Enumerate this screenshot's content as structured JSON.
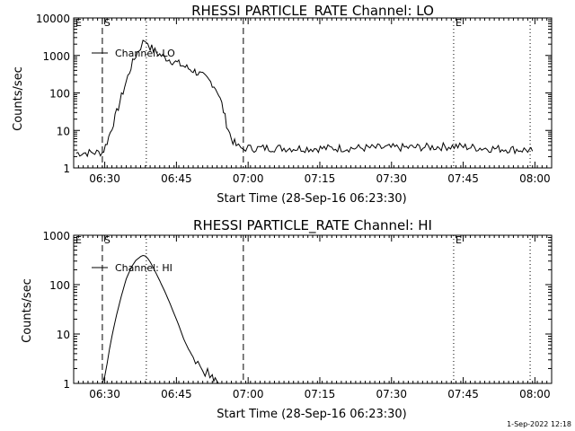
{
  "footer_stamp": "1-Sep-2022 12:18",
  "chart_data": [
    {
      "type": "line",
      "title": "RHESSI PARTICLE_RATE Channel: LO",
      "xlabel": "Start Time (28-Sep-16 06:23:30)",
      "ylabel": "Counts/sec",
      "yscale": "log",
      "ylim": [
        1,
        10000
      ],
      "xlim_minutes_from_start": [
        0,
        100
      ],
      "x_ticks": [
        {
          "minute": 6.5,
          "label": "06:30"
        },
        {
          "minute": 21.5,
          "label": "06:45"
        },
        {
          "minute": 36.5,
          "label": "07:00"
        },
        {
          "minute": 51.5,
          "label": "07:15"
        },
        {
          "minute": 66.5,
          "label": "07:30"
        },
        {
          "minute": 81.5,
          "label": "07:45"
        },
        {
          "minute": 96.5,
          "label": "08:00"
        }
      ],
      "y_ticks": [
        {
          "value": 1,
          "label": "1"
        },
        {
          "value": 10,
          "label": "10"
        },
        {
          "value": 100,
          "label": "100"
        },
        {
          "value": 1000,
          "label": "1000"
        },
        {
          "value": 10000,
          "label": "10000"
        }
      ],
      "legend": {
        "position": "top-left",
        "entries": [
          "Channel: LO"
        ]
      },
      "markers": [
        {
          "minute": 0,
          "label": "E",
          "style": "none"
        },
        {
          "minute": 6.0,
          "label": "S",
          "style": "dashed"
        },
        {
          "minute": 15.2,
          "label": "",
          "style": "dotted"
        },
        {
          "minute": 35.5,
          "label": "",
          "style": "dashed"
        },
        {
          "minute": 79.5,
          "label": "E",
          "style": "dotted"
        },
        {
          "minute": 95.5,
          "label": "",
          "style": "dotted"
        }
      ],
      "series": [
        {
          "name": "Channel: LO",
          "noise": 0.22,
          "x": [
            0.5,
            6.0,
            6.3,
            7.0,
            8.0,
            9.0,
            10.0,
            11.0,
            12.0,
            13.0,
            14.0,
            14.5,
            15.0,
            15.5,
            16.0,
            17.0,
            18.0,
            19.0,
            20.0,
            21.0,
            22.0,
            23.0,
            24.0,
            25.0,
            26.0,
            27.0,
            28.0,
            29.0,
            30.0,
            31.0,
            32.0,
            33.0,
            34.0,
            34.5,
            35.0,
            35.5,
            36.0,
            36.5,
            37.0,
            40.0,
            50.0,
            60.0,
            70.0,
            75.0,
            80.0,
            85.0,
            90.0,
            95.0,
            96.0
          ],
          "y": [
            2.5,
            2.6,
            3.0,
            5.0,
            12.0,
            30.0,
            80.0,
            200.0,
            500.0,
            1000.0,
            1700.0,
            2200.0,
            2500.0,
            2200.0,
            1700.0,
            1300.0,
            1050.0,
            900.0,
            780.0,
            680.0,
            600.0,
            520.0,
            450.0,
            400.0,
            340.0,
            280.0,
            230.0,
            180.0,
            120.0,
            50.0,
            15.0,
            6.0,
            4.0,
            3.6,
            3.3,
            3.2,
            3.4,
            3.5,
            3.3,
            3.4,
            3.3,
            3.4,
            3.5,
            3.6,
            3.8,
            3.4,
            3.2,
            3.0,
            2.8
          ]
        }
      ]
    },
    {
      "type": "line",
      "title": "RHESSI PARTICLE_RATE Channel: HI",
      "xlabel": "Start Time (28-Sep-16 06:23:30)",
      "ylabel": "Counts/sec",
      "yscale": "log",
      "ylim": [
        1,
        1000
      ],
      "xlim_minutes_from_start": [
        0,
        100
      ],
      "x_ticks": [
        {
          "minute": 6.5,
          "label": "06:30"
        },
        {
          "minute": 21.5,
          "label": "06:45"
        },
        {
          "minute": 36.5,
          "label": "07:00"
        },
        {
          "minute": 51.5,
          "label": "07:15"
        },
        {
          "minute": 66.5,
          "label": "07:30"
        },
        {
          "minute": 81.5,
          "label": "07:45"
        },
        {
          "minute": 96.5,
          "label": "08:00"
        }
      ],
      "y_ticks": [
        {
          "value": 1,
          "label": "1"
        },
        {
          "value": 10,
          "label": "10"
        },
        {
          "value": 100,
          "label": "100"
        },
        {
          "value": 1000,
          "label": "1000"
        }
      ],
      "legend": {
        "position": "top-left",
        "entries": [
          "Channel: HI"
        ]
      },
      "markers": [
        {
          "minute": 0,
          "label": "E",
          "style": "none"
        },
        {
          "minute": 6.0,
          "label": "S",
          "style": "dashed"
        },
        {
          "minute": 15.2,
          "label": "",
          "style": "dotted"
        },
        {
          "minute": 35.5,
          "label": "",
          "style": "dashed"
        },
        {
          "minute": 79.5,
          "label": "E",
          "style": "dotted"
        },
        {
          "minute": 95.5,
          "label": "",
          "style": "dotted"
        }
      ],
      "series": [
        {
          "name": "Channel: HI",
          "noise": 0,
          "x": [
            6.0,
            6.5,
            7.0,
            7.5,
            8.0,
            9.0,
            10.0,
            11.0,
            12.0,
            13.0,
            14.0,
            14.5,
            15.0,
            15.5,
            16.0,
            17.0,
            18.0,
            19.0,
            20.0,
            21.0,
            22.0,
            23.0,
            24.0,
            25.0,
            25.5,
            26.0,
            26.5,
            27.0,
            27.5,
            28.0,
            28.5,
            29.0,
            29.3,
            29.6,
            30.0,
            30.3
          ],
          "y": [
            1.0,
            1.4,
            2.5,
            5.0,
            9.0,
            25.0,
            60.0,
            130.0,
            220.0,
            310.0,
            370.0,
            390.0,
            380.0,
            340.0,
            290.0,
            190.0,
            120.0,
            75.0,
            45.0,
            26.0,
            15.0,
            8.0,
            5.0,
            3.4,
            2.5,
            2.8,
            2.2,
            1.8,
            1.4,
            2.0,
            1.3,
            1.5,
            1.1,
            1.3,
            1.1,
            1.0
          ]
        }
      ]
    }
  ]
}
